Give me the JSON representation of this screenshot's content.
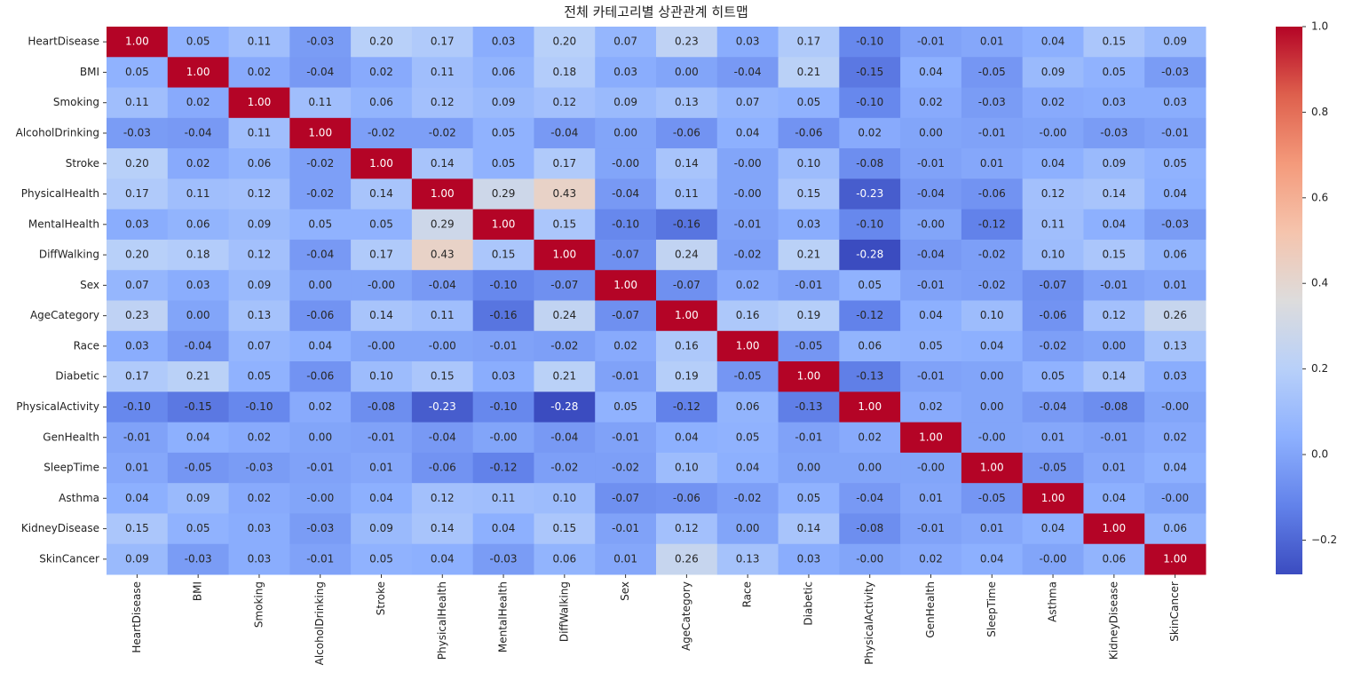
{
  "chart_data": {
    "type": "heatmap",
    "title": "전체 카테고리별 상관관계 히트맵",
    "colormap": "coolwarm",
    "x_categories": [
      "HeartDisease",
      "BMI",
      "Smoking",
      "AlcoholDrinking",
      "Stroke",
      "PhysicalHealth",
      "MentalHealth",
      "DiffWalking",
      "Sex",
      "AgeCategory",
      "Race",
      "Diabetic",
      "PhysicalActivity",
      "GenHealth",
      "SleepTime",
      "Asthma",
      "KidneyDisease",
      "SkinCancer"
    ],
    "y_categories": [
      "HeartDisease",
      "BMI",
      "Smoking",
      "AlcoholDrinking",
      "Stroke",
      "PhysicalHealth",
      "MentalHealth",
      "DiffWalking",
      "Sex",
      "AgeCategory",
      "Race",
      "Diabetic",
      "PhysicalActivity",
      "GenHealth",
      "SleepTime",
      "Asthma",
      "KidneyDisease",
      "SkinCancer"
    ],
    "values": [
      [
        1.0,
        0.05,
        0.11,
        -0.03,
        0.2,
        0.17,
        0.03,
        0.2,
        0.07,
        0.23,
        0.03,
        0.17,
        -0.1,
        -0.01,
        0.01,
        0.04,
        0.15,
        0.09
      ],
      [
        0.05,
        1.0,
        0.02,
        -0.04,
        0.02,
        0.11,
        0.06,
        0.18,
        0.03,
        0.0,
        -0.04,
        0.21,
        -0.15,
        0.04,
        -0.05,
        0.09,
        0.05,
        -0.03
      ],
      [
        0.11,
        0.02,
        1.0,
        0.11,
        0.06,
        0.12,
        0.09,
        0.12,
        0.09,
        0.13,
        0.07,
        0.05,
        -0.1,
        0.02,
        -0.03,
        0.02,
        0.03,
        0.03
      ],
      [
        -0.03,
        -0.04,
        0.11,
        1.0,
        -0.02,
        -0.02,
        0.05,
        -0.04,
        0.0,
        -0.06,
        0.04,
        -0.06,
        0.02,
        0.0,
        -0.01,
        0,
        -0.03,
        -0.01
      ],
      [
        0.2,
        0.02,
        0.06,
        -0.02,
        1.0,
        0.14,
        0.05,
        0.17,
        0,
        0.14,
        0,
        0.1,
        -0.08,
        -0.01,
        0.01,
        0.04,
        0.09,
        0.05
      ],
      [
        0.17,
        0.11,
        0.12,
        -0.02,
        0.14,
        1.0,
        0.29,
        0.43,
        -0.04,
        0.11,
        0,
        0.15,
        -0.23,
        -0.04,
        -0.06,
        0.12,
        0.14,
        0.04
      ],
      [
        0.03,
        0.06,
        0.09,
        0.05,
        0.05,
        0.29,
        1.0,
        0.15,
        -0.1,
        -0.16,
        -0.01,
        0.03,
        -0.1,
        0,
        -0.12,
        0.11,
        0.04,
        -0.03
      ],
      [
        0.2,
        0.18,
        0.12,
        -0.04,
        0.17,
        0.43,
        0.15,
        1.0,
        -0.07,
        0.24,
        -0.02,
        0.21,
        -0.28,
        -0.04,
        -0.02,
        0.1,
        0.15,
        0.06
      ],
      [
        0.07,
        0.03,
        0.09,
        0.0,
        0,
        -0.04,
        -0.1,
        -0.07,
        1.0,
        -0.07,
        0.02,
        -0.01,
        0.05,
        -0.01,
        -0.02,
        -0.07,
        -0.01,
        0.01
      ],
      [
        0.23,
        0.0,
        0.13,
        -0.06,
        0.14,
        0.11,
        -0.16,
        0.24,
        -0.07,
        1.0,
        0.16,
        0.19,
        -0.12,
        0.04,
        0.1,
        -0.06,
        0.12,
        0.26
      ],
      [
        0.03,
        -0.04,
        0.07,
        0.04,
        0,
        0,
        -0.01,
        -0.02,
        0.02,
        0.16,
        1.0,
        -0.05,
        0.06,
        0.05,
        0.04,
        -0.02,
        0.0,
        0.13
      ],
      [
        0.17,
        0.21,
        0.05,
        -0.06,
        0.1,
        0.15,
        0.03,
        0.21,
        -0.01,
        0.19,
        -0.05,
        1.0,
        -0.13,
        -0.01,
        0.0,
        0.05,
        0.14,
        0.03
      ],
      [
        -0.1,
        -0.15,
        -0.1,
        0.02,
        -0.08,
        -0.23,
        -0.1,
        -0.28,
        0.05,
        -0.12,
        0.06,
        -0.13,
        1.0,
        0.02,
        0.0,
        -0.04,
        -0.08,
        0
      ],
      [
        -0.01,
        0.04,
        0.02,
        0.0,
        -0.01,
        -0.04,
        0,
        -0.04,
        -0.01,
        0.04,
        0.05,
        -0.01,
        0.02,
        1.0,
        0,
        0.01,
        -0.01,
        0.02
      ],
      [
        0.01,
        -0.05,
        -0.03,
        -0.01,
        0.01,
        -0.06,
        -0.12,
        -0.02,
        -0.02,
        0.1,
        0.04,
        0.0,
        0.0,
        0,
        1.0,
        -0.05,
        0.01,
        0.04
      ],
      [
        0.04,
        0.09,
        0.02,
        0,
        0.04,
        0.12,
        0.11,
        0.1,
        -0.07,
        -0.06,
        -0.02,
        0.05,
        -0.04,
        0.01,
        -0.05,
        1.0,
        0.04,
        0
      ],
      [
        0.15,
        0.05,
        0.03,
        -0.03,
        0.09,
        0.14,
        0.04,
        0.15,
        -0.01,
        0.12,
        0.0,
        0.14,
        -0.08,
        -0.01,
        0.01,
        0.04,
        1.0,
        0.06
      ],
      [
        0.09,
        -0.03,
        0.03,
        -0.01,
        0.05,
        0.04,
        -0.03,
        0.06,
        0.01,
        0.26,
        0.13,
        0.03,
        0,
        0.02,
        0.04,
        0,
        0.06,
        1.0
      ]
    ],
    "value_labels": [
      [
        "1.00",
        "0.05",
        "0.11",
        "-0.03",
        "0.20",
        "0.17",
        "0.03",
        "0.20",
        "0.07",
        "0.23",
        "0.03",
        "0.17",
        "-0.10",
        "-0.01",
        "0.01",
        "0.04",
        "0.15",
        "0.09"
      ],
      [
        "0.05",
        "1.00",
        "0.02",
        "-0.04",
        "0.02",
        "0.11",
        "0.06",
        "0.18",
        "0.03",
        "0.00",
        "-0.04",
        "0.21",
        "-0.15",
        "0.04",
        "-0.05",
        "0.09",
        "0.05",
        "-0.03"
      ],
      [
        "0.11",
        "0.02",
        "1.00",
        "0.11",
        "0.06",
        "0.12",
        "0.09",
        "0.12",
        "0.09",
        "0.13",
        "0.07",
        "0.05",
        "-0.10",
        "0.02",
        "-0.03",
        "0.02",
        "0.03",
        "0.03"
      ],
      [
        "-0.03",
        "-0.04",
        "0.11",
        "1.00",
        "-0.02",
        "-0.02",
        "0.05",
        "-0.04",
        "0.00",
        "-0.06",
        "0.04",
        "-0.06",
        "0.02",
        "0.00",
        "-0.01",
        "-0.00",
        "-0.03",
        "-0.01"
      ],
      [
        "0.20",
        "0.02",
        "0.06",
        "-0.02",
        "1.00",
        "0.14",
        "0.05",
        "0.17",
        "-0.00",
        "0.14",
        "-0.00",
        "0.10",
        "-0.08",
        "-0.01",
        "0.01",
        "0.04",
        "0.09",
        "0.05"
      ],
      [
        "0.17",
        "0.11",
        "0.12",
        "-0.02",
        "0.14",
        "1.00",
        "0.29",
        "0.43",
        "-0.04",
        "0.11",
        "-0.00",
        "0.15",
        "-0.23",
        "-0.04",
        "-0.06",
        "0.12",
        "0.14",
        "0.04"
      ],
      [
        "0.03",
        "0.06",
        "0.09",
        "0.05",
        "0.05",
        "0.29",
        "1.00",
        "0.15",
        "-0.10",
        "-0.16",
        "-0.01",
        "0.03",
        "-0.10",
        "-0.00",
        "-0.12",
        "0.11",
        "0.04",
        "-0.03"
      ],
      [
        "0.20",
        "0.18",
        "0.12",
        "-0.04",
        "0.17",
        "0.43",
        "0.15",
        "1.00",
        "-0.07",
        "0.24",
        "-0.02",
        "0.21",
        "-0.28",
        "-0.04",
        "-0.02",
        "0.10",
        "0.15",
        "0.06"
      ],
      [
        "0.07",
        "0.03",
        "0.09",
        "0.00",
        "-0.00",
        "-0.04",
        "-0.10",
        "-0.07",
        "1.00",
        "-0.07",
        "0.02",
        "-0.01",
        "0.05",
        "-0.01",
        "-0.02",
        "-0.07",
        "-0.01",
        "0.01"
      ],
      [
        "0.23",
        "0.00",
        "0.13",
        "-0.06",
        "0.14",
        "0.11",
        "-0.16",
        "0.24",
        "-0.07",
        "1.00",
        "0.16",
        "0.19",
        "-0.12",
        "0.04",
        "0.10",
        "-0.06",
        "0.12",
        "0.26"
      ],
      [
        "0.03",
        "-0.04",
        "0.07",
        "0.04",
        "-0.00",
        "-0.00",
        "-0.01",
        "-0.02",
        "0.02",
        "0.16",
        "1.00",
        "-0.05",
        "0.06",
        "0.05",
        "0.04",
        "-0.02",
        "0.00",
        "0.13"
      ],
      [
        "0.17",
        "0.21",
        "0.05",
        "-0.06",
        "0.10",
        "0.15",
        "0.03",
        "0.21",
        "-0.01",
        "0.19",
        "-0.05",
        "1.00",
        "-0.13",
        "-0.01",
        "0.00",
        "0.05",
        "0.14",
        "0.03"
      ],
      [
        "-0.10",
        "-0.15",
        "-0.10",
        "0.02",
        "-0.08",
        "-0.23",
        "-0.10",
        "-0.28",
        "0.05",
        "-0.12",
        "0.06",
        "-0.13",
        "1.00",
        "0.02",
        "0.00",
        "-0.04",
        "-0.08",
        "-0.00"
      ],
      [
        "-0.01",
        "0.04",
        "0.02",
        "0.00",
        "-0.01",
        "-0.04",
        "-0.00",
        "-0.04",
        "-0.01",
        "0.04",
        "0.05",
        "-0.01",
        "0.02",
        "1.00",
        "-0.00",
        "0.01",
        "-0.01",
        "0.02"
      ],
      [
        "0.01",
        "-0.05",
        "-0.03",
        "-0.01",
        "0.01",
        "-0.06",
        "-0.12",
        "-0.02",
        "-0.02",
        "0.10",
        "0.04",
        "0.00",
        "0.00",
        "-0.00",
        "1.00",
        "-0.05",
        "0.01",
        "0.04"
      ],
      [
        "0.04",
        "0.09",
        "0.02",
        "-0.00",
        "0.04",
        "0.12",
        "0.11",
        "0.10",
        "-0.07",
        "-0.06",
        "-0.02",
        "0.05",
        "-0.04",
        "0.01",
        "-0.05",
        "1.00",
        "0.04",
        "-0.00"
      ],
      [
        "0.15",
        "0.05",
        "0.03",
        "-0.03",
        "0.09",
        "0.14",
        "0.04",
        "0.15",
        "-0.01",
        "0.12",
        "0.00",
        "0.14",
        "-0.08",
        "-0.01",
        "0.01",
        "0.04",
        "1.00",
        "0.06"
      ],
      [
        "0.09",
        "-0.03",
        "0.03",
        "-0.01",
        "0.05",
        "0.04",
        "-0.03",
        "0.06",
        "0.01",
        "0.26",
        "0.13",
        "0.03",
        "-0.00",
        "0.02",
        "0.04",
        "-0.00",
        "0.06",
        "1.00"
      ]
    ],
    "clim": [
      -0.28,
      1
    ],
    "cticks": [
      {
        "value": -0.2,
        "label": "−0.2"
      },
      {
        "value": 0,
        "label": "0.0"
      },
      {
        "value": 0.2,
        "label": "0.2"
      },
      {
        "value": 0.4,
        "label": "0.4"
      },
      {
        "value": 0.6,
        "label": "0.6"
      },
      {
        "value": 0.8,
        "label": "0.8"
      },
      {
        "value": 1,
        "label": "1.0"
      }
    ]
  }
}
